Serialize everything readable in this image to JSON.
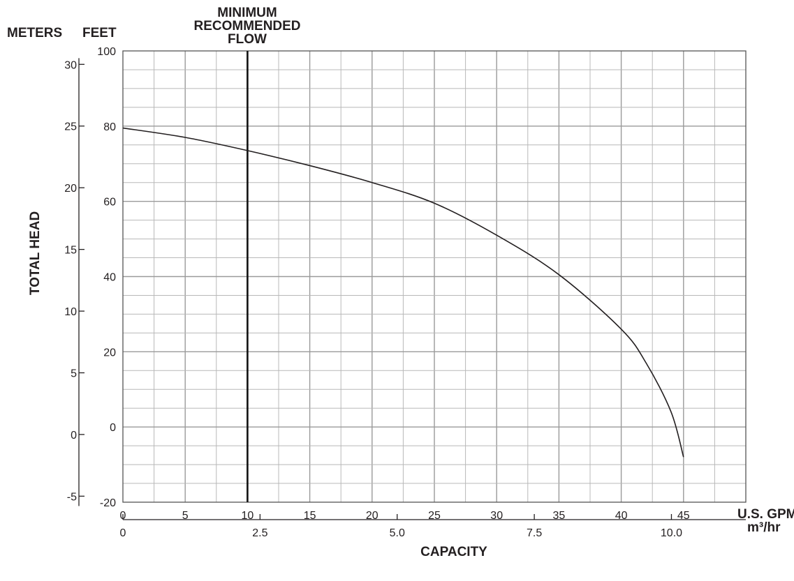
{
  "chart_data": {
    "type": "line",
    "title_lines": [
      "MINIMUM",
      "RECOMMENDED",
      "FLOW"
    ],
    "ylabel": "TOTAL HEAD",
    "xlabel": "CAPACITY",
    "y_left_unit": "METERS",
    "y_right_unit": "FEET",
    "x_primary_unit": "U.S. GPM",
    "x_secondary_unit": "m³/hr",
    "x_primary": {
      "range": [
        0,
        50
      ],
      "ticks": [
        "0",
        "5",
        "10",
        "15",
        "20",
        "25",
        "30",
        "35",
        "40",
        "45"
      ]
    },
    "x_secondary": {
      "ticks": [
        {
          "v": 0,
          "label": "0"
        },
        {
          "v": 2.5,
          "label": "2.5"
        },
        {
          "v": 5.0,
          "label": "5.0"
        },
        {
          "v": 7.5,
          "label": "7.5"
        },
        {
          "v": 10.0,
          "label": "10.0"
        }
      ]
    },
    "y_feet": {
      "range": [
        -20,
        100
      ],
      "ticks": [
        "-20",
        "0",
        "20",
        "40",
        "60",
        "80",
        "100"
      ]
    },
    "y_meters": {
      "ticks": [
        {
          "v": -5,
          "label": "-5"
        },
        {
          "v": 0,
          "label": "0"
        },
        {
          "v": 5,
          "label": "5"
        },
        {
          "v": 10,
          "label": "10"
        },
        {
          "v": 15,
          "label": "15"
        },
        {
          "v": 20,
          "label": "20"
        },
        {
          "v": 25,
          "label": "25"
        },
        {
          "v": 30,
          "label": "30"
        }
      ]
    },
    "grid": true,
    "minimum_flow_gpm": 10,
    "series": [
      {
        "x": [
          0,
          5,
          10,
          15,
          20,
          25,
          30,
          35,
          40,
          42,
          44,
          45
        ],
        "y": [
          79.5,
          77,
          73.5,
          69.5,
          65,
          59.5,
          51,
          40.5,
          26,
          17,
          4,
          -8
        ]
      }
    ]
  }
}
